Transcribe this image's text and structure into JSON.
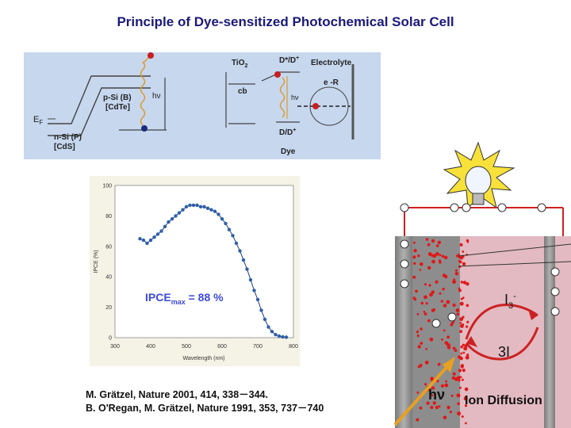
{
  "title": "Principle of Dye-sensitized Photochemical Solar Cell",
  "energy_diagram": {
    "ef_label": "E",
    "ef_sub": "F",
    "psi_label_1": "p-Si (B)",
    "psi_label_2": "[CdTe]",
    "nsi_label_1": "n-Si (P)",
    "nsi_label_2": "[CdS]",
    "hv_left": "hν",
    "tio2": "TiO",
    "tio2_sub": "2",
    "cb": "cb",
    "dstar": "D*/D",
    "dstar_sup": "+",
    "electrolyte": "Electrolyte",
    "er": "e -R",
    "hv_right": "hν",
    "dd": "D/D",
    "dd_sup": "+",
    "dye": "Dye",
    "colors": {
      "bg": "#c6d7ee",
      "electron": "#c81e1e",
      "hole": "#1a2a7a",
      "wave": "#e09a2a"
    }
  },
  "chart_data": {
    "type": "scatter",
    "xlabel": "Wavelength (nm)",
    "ylabel": "IPCE (%)",
    "xlim": [
      300,
      800
    ],
    "ylim": [
      0,
      100
    ],
    "xticks": [
      300,
      400,
      500,
      600,
      700,
      800
    ],
    "yticks": [
      0,
      20,
      40,
      60,
      80,
      100
    ],
    "annotation": "IPCE",
    "annotation_sub": "max",
    "annotation_rest": " = 88 %",
    "x": [
      370,
      380,
      390,
      400,
      410,
      420,
      430,
      440,
      450,
      460,
      470,
      480,
      490,
      500,
      510,
      520,
      530,
      540,
      550,
      560,
      570,
      580,
      590,
      600,
      610,
      620,
      630,
      640,
      650,
      660,
      670,
      680,
      690,
      700,
      710,
      720,
      730,
      740,
      750,
      760,
      770,
      780
    ],
    "y": [
      65,
      64,
      62,
      64,
      66,
      68,
      70,
      73,
      76,
      78,
      80,
      82,
      84,
      86,
      87,
      87,
      87,
      86,
      86,
      85,
      84,
      83,
      81,
      78,
      75,
      71,
      67,
      62,
      57,
      51,
      45,
      38,
      31,
      25,
      18,
      12,
      7,
      4,
      2,
      1,
      0.5,
      0.3
    ],
    "colors": {
      "point": "#2f5fa8",
      "line": "#1d3d80",
      "annotation": "#3d4ad8",
      "frame": "#f5f2e6"
    }
  },
  "cell_diagram": {
    "i3": "I",
    "i3_sub": "3",
    "i3_sup": "-",
    "three_i": "3I",
    "hv": "hν",
    "ion_diffusion": "Ion Diffusion",
    "colors": {
      "electrolyte": "#e3bac2",
      "dots": "#e01818",
      "electrode": "#9a9a9a",
      "wire": "#cc2222",
      "arrow": "#e8a020"
    }
  },
  "references": [
    "M. Grätzel, Nature 2001, 414, 338－344.",
    "B. O'Regan, M. Grätzel, Nature 1991, 353, 737－740"
  ]
}
